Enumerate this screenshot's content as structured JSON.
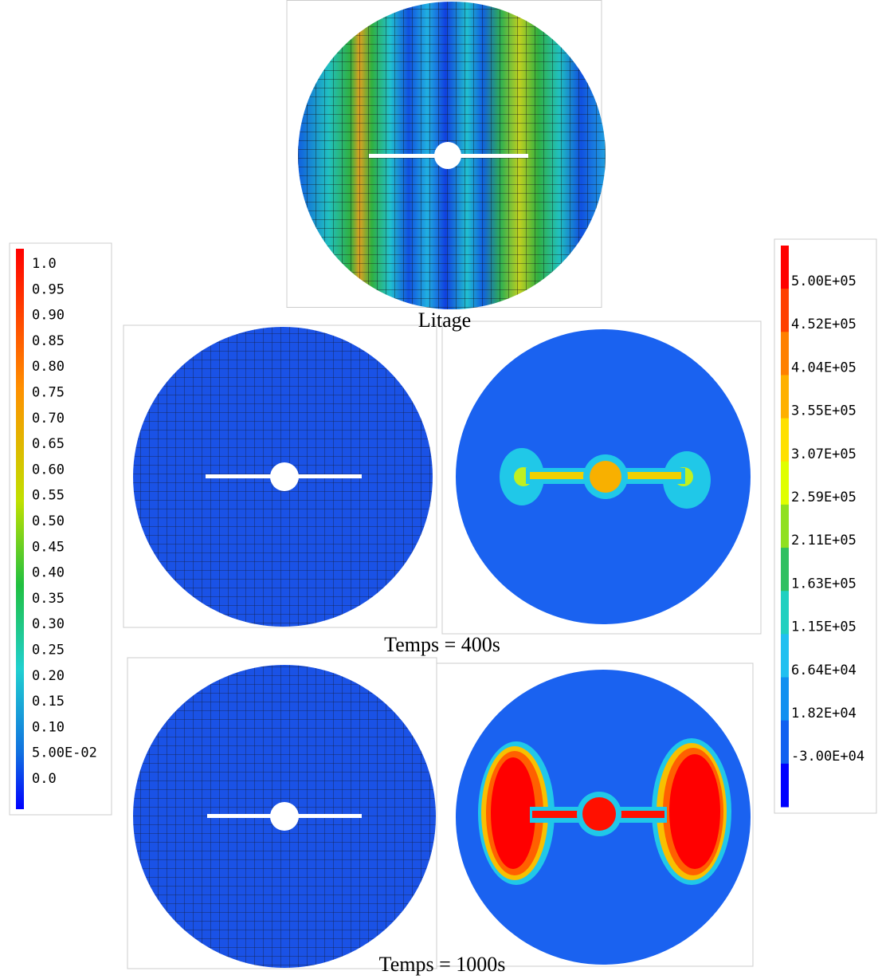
{
  "captions": {
    "top": "Litage",
    "middle": "Temps = 400s",
    "bottom": "Temps = 1000s"
  },
  "left_colorbar": {
    "labels": [
      "1.0",
      "0.95",
      "0.90",
      "0.85",
      "0.80",
      "0.75",
      "0.70",
      "0.65",
      "0.60",
      "0.55",
      "0.50",
      "0.45",
      "0.40",
      "0.35",
      "0.30",
      "0.25",
      "0.20",
      "0.15",
      "0.10",
      "5.00E-02",
      "0.0"
    ]
  },
  "right_colorbar": {
    "labels": [
      "5.00E+05",
      "4.52E+05",
      "4.04E+05",
      "3.55E+05",
      "3.07E+05",
      "2.59E+05",
      "2.11E+05",
      "1.63E+05",
      "1.15E+05",
      "6.64E+04",
      "1.82E+04",
      "-3.00E+04"
    ]
  }
}
